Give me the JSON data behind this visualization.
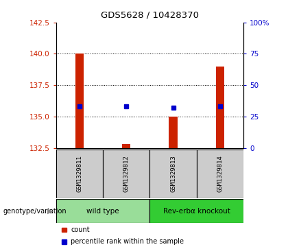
{
  "title": "GDS5628 / 10428370",
  "categories": [
    "GSM1329811",
    "GSM1329812",
    "GSM1329813",
    "GSM1329814"
  ],
  "bar_values": [
    140.0,
    132.8,
    135.0,
    139.0
  ],
  "bar_base": 132.5,
  "percentile_values": [
    33,
    33,
    32,
    33
  ],
  "ylim_left": [
    132.5,
    142.5
  ],
  "ylim_right": [
    0,
    100
  ],
  "yticks_left": [
    132.5,
    135.0,
    137.5,
    140.0,
    142.5
  ],
  "yticks_right": [
    0,
    25,
    50,
    75,
    100
  ],
  "ytick_labels_right": [
    "0",
    "25",
    "50",
    "75",
    "100%"
  ],
  "bar_color": "#cc2200",
  "dot_color": "#0000cc",
  "grid_ticks": [
    135.0,
    137.5,
    140.0
  ],
  "groups": [
    {
      "label": "wild type",
      "indices": [
        0,
        1
      ],
      "color": "#99dd99"
    },
    {
      "label": "Rev-erbα knockout",
      "indices": [
        2,
        3
      ],
      "color": "#33cc33"
    }
  ],
  "group_label": "genotype/variation",
  "legend_items": [
    {
      "color": "#cc2200",
      "label": "count"
    },
    {
      "color": "#0000cc",
      "label": "percentile rank within the sample"
    }
  ],
  "sample_bg_color": "#cccccc",
  "plot_bg": "#ffffff",
  "fig_bg": "#ffffff"
}
